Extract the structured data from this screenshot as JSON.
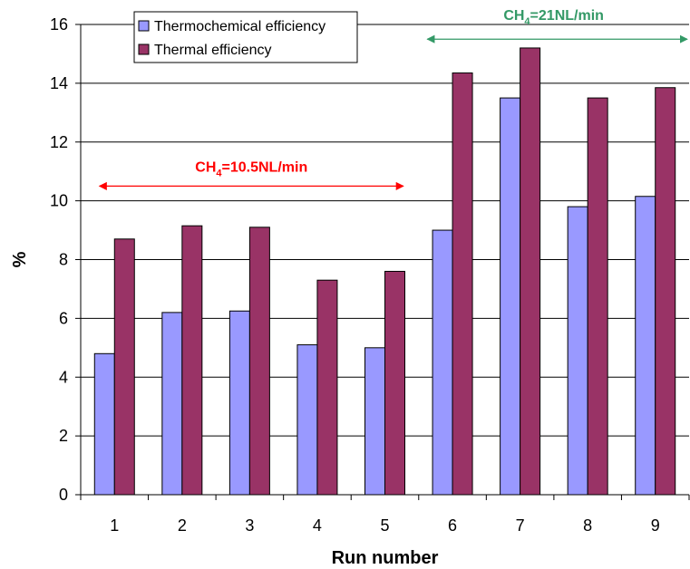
{
  "chart_data": {
    "type": "bar",
    "xlabel": "Run number",
    "ylabel": "%",
    "ylim": [
      0,
      16
    ],
    "y_ticks": [
      "0",
      "2",
      "4",
      "6",
      "8",
      "10",
      "12",
      "14",
      "16"
    ],
    "categories": [
      "1",
      "2",
      "3",
      "4",
      "5",
      "6",
      "7",
      "8",
      "9"
    ],
    "grid": "horizontal major gridlines",
    "legend_position": "top-left",
    "series": [
      {
        "name": "Thermochemical efficiency",
        "color": "#9999ff",
        "values": [
          4.8,
          6.2,
          6.25,
          5.1,
          5.0,
          9.0,
          13.5,
          9.8,
          10.15
        ]
      },
      {
        "name": "Thermal efficiency",
        "color": "#993366",
        "values": [
          8.7,
          9.15,
          9.1,
          7.3,
          7.6,
          14.35,
          15.2,
          13.5,
          13.85
        ]
      }
    ],
    "annotations": [
      {
        "prefix": "CH",
        "subscript": "4",
        "suffix": "=10.5NL/min",
        "color": "#ff0000",
        "range_runs": [
          "1",
          "5"
        ],
        "y": 10.5
      },
      {
        "prefix": "CH",
        "subscript": "4",
        "suffix": "=21NL/min",
        "color": "#339966",
        "range_runs": [
          "6",
          "9"
        ],
        "y": 15.5
      }
    ]
  }
}
